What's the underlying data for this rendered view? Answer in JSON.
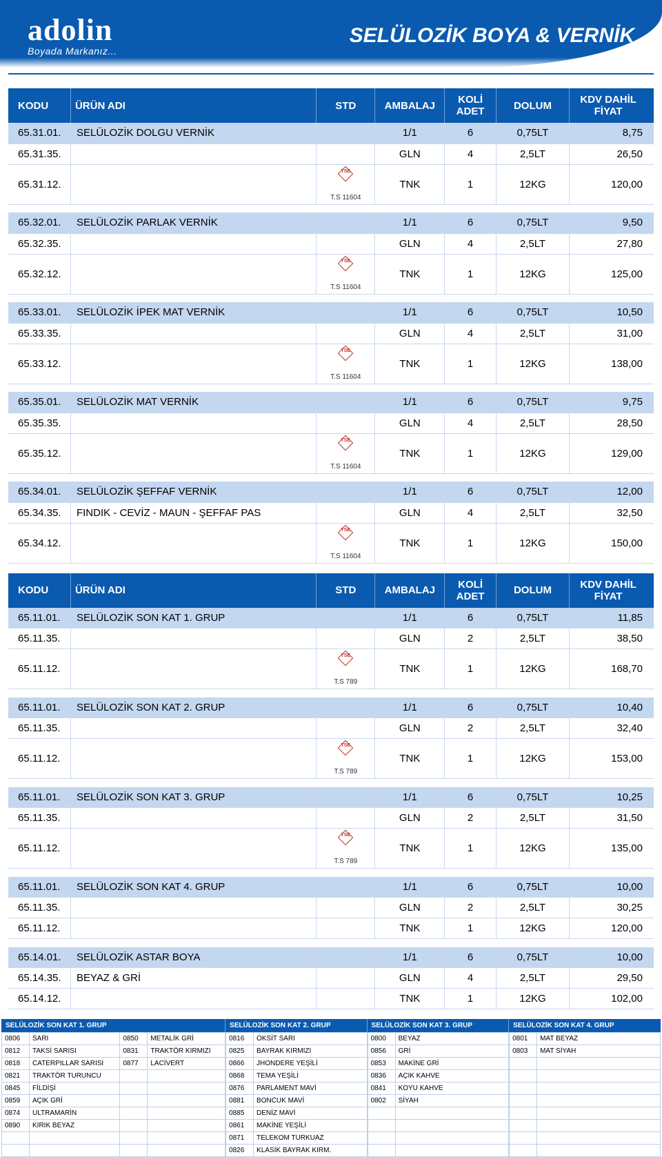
{
  "brand": "adolin",
  "brand_tagline": "Boyada Markanız...",
  "page_title": "SELÜLOZİK BOYA & VERNİK",
  "colors": {
    "header_blue": "#0a5ab0",
    "row_highlight": "#c4d7f0",
    "border": "#c8d8ee",
    "tse_red": "#c0392b"
  },
  "table_headers": {
    "kodu": "KODU",
    "urun": "ÜRÜN ADI",
    "std": "STD",
    "ambalaj": "AMBALAJ",
    "koli": "KOLİ ADET",
    "dolum": "DOLUM",
    "fiyat": "KDV DAHİL FİYAT"
  },
  "table1_groups": [
    {
      "rows": [
        {
          "hl": true,
          "kodu": "65.31.01.",
          "urun": "SELÜLOZİK DOLGU VERNİK",
          "std": "",
          "amb": "1/1",
          "koli": "6",
          "dol": "0,75LT",
          "fiy": "8,75"
        },
        {
          "hl": false,
          "kodu": "65.31.35.",
          "urun": "",
          "std": "",
          "amb": "GLN",
          "koli": "4",
          "dol": "2,5LT",
          "fiy": "26,50"
        },
        {
          "hl": false,
          "kodu": "65.31.12.",
          "urun": "",
          "std": "T.S 11604",
          "amb": "TNK",
          "koli": "1",
          "dol": "12KG",
          "fiy": "120,00"
        }
      ]
    },
    {
      "rows": [
        {
          "hl": true,
          "kodu": "65.32.01.",
          "urun": "SELÜLOZİK PARLAK VERNİK",
          "std": "",
          "amb": "1/1",
          "koli": "6",
          "dol": "0,75LT",
          "fiy": "9,50"
        },
        {
          "hl": false,
          "kodu": "65.32.35.",
          "urun": "",
          "std": "",
          "amb": "GLN",
          "koli": "4",
          "dol": "2,5LT",
          "fiy": "27,80"
        },
        {
          "hl": false,
          "kodu": "65.32.12.",
          "urun": "",
          "std": "T.S 11604",
          "amb": "TNK",
          "koli": "1",
          "dol": "12KG",
          "fiy": "125,00"
        }
      ]
    },
    {
      "rows": [
        {
          "hl": true,
          "kodu": "65.33.01.",
          "urun": "SELÜLOZİK İPEK MAT VERNİK",
          "std": "",
          "amb": "1/1",
          "koli": "6",
          "dol": "0,75LT",
          "fiy": "10,50"
        },
        {
          "hl": false,
          "kodu": "65.33.35.",
          "urun": "",
          "std": "",
          "amb": "GLN",
          "koli": "4",
          "dol": "2,5LT",
          "fiy": "31,00"
        },
        {
          "hl": false,
          "kodu": "65.33.12.",
          "urun": "",
          "std": "T.S 11604",
          "amb": "TNK",
          "koli": "1",
          "dol": "12KG",
          "fiy": "138,00"
        }
      ]
    },
    {
      "rows": [
        {
          "hl": true,
          "kodu": "65.35.01.",
          "urun": "SELÜLOZİK MAT VERNİK",
          "std": "",
          "amb": "1/1",
          "koli": "6",
          "dol": "0,75LT",
          "fiy": "9,75"
        },
        {
          "hl": false,
          "kodu": "65.35.35.",
          "urun": "",
          "std": "",
          "amb": "GLN",
          "koli": "4",
          "dol": "2,5LT",
          "fiy": "28,50"
        },
        {
          "hl": false,
          "kodu": "65.35.12.",
          "urun": "",
          "std": "T.S 11604",
          "amb": "TNK",
          "koli": "1",
          "dol": "12KG",
          "fiy": "129,00"
        }
      ]
    },
    {
      "rows": [
        {
          "hl": true,
          "kodu": "65.34.01.",
          "urun": "SELÜLOZİK ŞEFFAF VERNİK",
          "std": "",
          "amb": "1/1",
          "koli": "6",
          "dol": "0,75LT",
          "fiy": "12,00"
        },
        {
          "hl": false,
          "kodu": "65.34.35.",
          "urun": "FINDIK - CEVİZ - MAUN - ŞEFFAF  PAS",
          "std": "",
          "amb": "GLN",
          "koli": "4",
          "dol": "2,5LT",
          "fiy": "32,50"
        },
        {
          "hl": false,
          "kodu": "65.34.12.",
          "urun": "",
          "std": "T.S 11604",
          "amb": "TNK",
          "koli": "1",
          "dol": "12KG",
          "fiy": "150,00"
        }
      ]
    }
  ],
  "table2_groups": [
    {
      "rows": [
        {
          "hl": true,
          "kodu": "65.11.01.",
          "urun": "SELÜLOZİK SON KAT  1. GRUP",
          "std": "",
          "amb": "1/1",
          "koli": "6",
          "dol": "0,75LT",
          "fiy": "11,85"
        },
        {
          "hl": false,
          "kodu": "65.11.35.",
          "urun": "",
          "std": "",
          "amb": "GLN",
          "koli": "2",
          "dol": "2,5LT",
          "fiy": "38,50"
        },
        {
          "hl": false,
          "kodu": "65.11.12.",
          "urun": "",
          "std": "T.S 789",
          "amb": "TNK",
          "koli": "1",
          "dol": "12KG",
          "fiy": "168,70"
        }
      ]
    },
    {
      "rows": [
        {
          "hl": true,
          "kodu": "65.11.01.",
          "urun": "SELÜLOZİK SON KAT  2. GRUP",
          "std": "",
          "amb": "1/1",
          "koli": "6",
          "dol": "0,75LT",
          "fiy": "10,40"
        },
        {
          "hl": false,
          "kodu": "65.11.35.",
          "urun": "",
          "std": "",
          "amb": "GLN",
          "koli": "2",
          "dol": "2,5LT",
          "fiy": "32,40"
        },
        {
          "hl": false,
          "kodu": "65.11.12.",
          "urun": "",
          "std": "T.S 789",
          "amb": "TNK",
          "koli": "1",
          "dol": "12KG",
          "fiy": "153,00"
        }
      ]
    },
    {
      "rows": [
        {
          "hl": true,
          "kodu": "65.11.01.",
          "urun": "SELÜLOZİK SON KAT  3. GRUP",
          "std": "",
          "amb": "1/1",
          "koli": "6",
          "dol": "0,75LT",
          "fiy": "10,25"
        },
        {
          "hl": false,
          "kodu": "65.11.35.",
          "urun": "",
          "std": "",
          "amb": "GLN",
          "koli": "2",
          "dol": "2,5LT",
          "fiy": "31,50"
        },
        {
          "hl": false,
          "kodu": "65.11.12.",
          "urun": "",
          "std": "T.S 789",
          "amb": "TNK",
          "koli": "1",
          "dol": "12KG",
          "fiy": "135,00"
        }
      ]
    },
    {
      "rows": [
        {
          "hl": true,
          "kodu": "65.11.01.",
          "urun": "SELÜLOZİK SON KAT  4. GRUP",
          "std": "",
          "amb": "1/1",
          "koli": "6",
          "dol": "0,75LT",
          "fiy": "10,00"
        },
        {
          "hl": false,
          "kodu": "65.11.35.",
          "urun": "",
          "std": "",
          "amb": "GLN",
          "koli": "2",
          "dol": "2,5LT",
          "fiy": "30,25"
        },
        {
          "hl": false,
          "kodu": "65.11.12.",
          "urun": "",
          "std": "",
          "amb": "TNK",
          "koli": "1",
          "dol": "12KG",
          "fiy": "120,00"
        }
      ]
    },
    {
      "rows": [
        {
          "hl": true,
          "kodu": "65.14.01.",
          "urun": "SELÜLOZİK ASTAR BOYA",
          "std": "",
          "amb": "1/1",
          "koli": "6",
          "dol": "0,75LT",
          "fiy": "10,00"
        },
        {
          "hl": false,
          "kodu": "65.14.35.",
          "urun": "BEYAZ & GRİ",
          "std": "",
          "amb": "GLN",
          "koli": "4",
          "dol": "2,5LT",
          "fiy": "29,50"
        },
        {
          "hl": false,
          "kodu": "65.14.12.",
          "urun": "",
          "std": "",
          "amb": "TNK",
          "koli": "1",
          "dol": "12KG",
          "fiy": "102,00"
        }
      ]
    }
  ],
  "footer_titles": [
    "SELÜLOZİK SON KAT 1. GRUP",
    "SELÜLOZİK SON KAT 2. GRUP",
    "SELÜLOZİK SON KAT 3. GRUP",
    "SELÜLOZİK SON KAT 4. GRUP"
  ],
  "footer_col1": [
    [
      {
        "c": "0806",
        "n": "SARI"
      },
      {
        "c": "0850",
        "n": "METALİK GRİ"
      }
    ],
    [
      {
        "c": "0812",
        "n": "TAKSİ SARISI"
      },
      {
        "c": "0831",
        "n": "TRAKTÖR KIRMIZI"
      }
    ],
    [
      {
        "c": "0818",
        "n": "CATERPILLAR SARISI"
      },
      {
        "c": "0877",
        "n": "LACİVERT"
      }
    ],
    [
      {
        "c": "0821",
        "n": "TRAKTÖR TURUNCU"
      },
      {
        "c": "",
        "n": ""
      }
    ],
    [
      {
        "c": "0845",
        "n": "FİLDİŞİ"
      },
      {
        "c": "",
        "n": ""
      }
    ],
    [
      {
        "c": "0859",
        "n": "AÇIK GRİ"
      },
      {
        "c": "",
        "n": ""
      }
    ],
    [
      {
        "c": "0874",
        "n": "ULTRAMARİN"
      },
      {
        "c": "",
        "n": ""
      }
    ],
    [
      {
        "c": "0890",
        "n": "KIRIK BEYAZ"
      },
      {
        "c": "",
        "n": ""
      }
    ],
    [
      {
        "c": "",
        "n": ""
      },
      {
        "c": "",
        "n": ""
      }
    ],
    [
      {
        "c": "",
        "n": ""
      },
      {
        "c": "",
        "n": ""
      }
    ]
  ],
  "footer_col2": [
    {
      "c": "0816",
      "n": "OKSİT SARI"
    },
    {
      "c": "0825",
      "n": "BAYRAK KIRMIZI"
    },
    {
      "c": "0866",
      "n": "JHONDERE YEŞİLİ"
    },
    {
      "c": "0868",
      "n": "TEMA YEŞİLİ"
    },
    {
      "c": "0876",
      "n": "PARLAMENT MAVİ"
    },
    {
      "c": "0881",
      "n": "BONCUK MAVİ"
    },
    {
      "c": "0885",
      "n": "DENİZ MAVİ"
    },
    {
      "c": "0861",
      "n": "MAKİNE YEŞİLİ"
    },
    {
      "c": "0871",
      "n": "TELEKOM TURKUAZ"
    },
    {
      "c": "0826",
      "n": "KLASİK BAYRAK KIRM."
    }
  ],
  "footer_col3": [
    {
      "c": "0800",
      "n": "BEYAZ"
    },
    {
      "c": "0856",
      "n": "GRİ"
    },
    {
      "c": "0853",
      "n": "MAKİNE GRİ"
    },
    {
      "c": "0836",
      "n": "AÇIK KAHVE"
    },
    {
      "c": "0841",
      "n": "KOYU KAHVE"
    },
    {
      "c": "0802",
      "n": "SİYAH"
    },
    {
      "c": "",
      "n": ""
    },
    {
      "c": "",
      "n": ""
    },
    {
      "c": "",
      "n": ""
    },
    {
      "c": "",
      "n": ""
    }
  ],
  "footer_col4": [
    {
      "c": "0801",
      "n": "MAT BEYAZ"
    },
    {
      "c": "0803",
      "n": "MAT SİYAH"
    },
    {
      "c": "",
      "n": ""
    },
    {
      "c": "",
      "n": ""
    },
    {
      "c": "",
      "n": ""
    },
    {
      "c": "",
      "n": ""
    },
    {
      "c": "",
      "n": ""
    },
    {
      "c": "",
      "n": ""
    },
    {
      "c": "",
      "n": ""
    },
    {
      "c": "",
      "n": ""
    }
  ]
}
